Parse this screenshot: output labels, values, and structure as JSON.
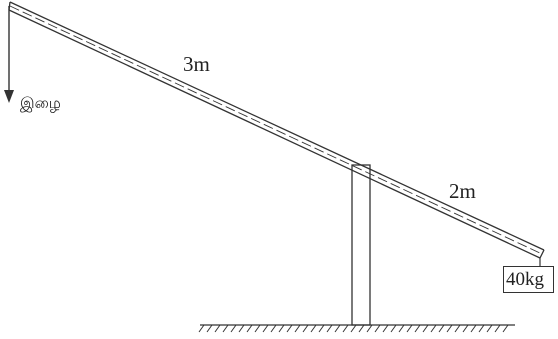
{
  "diagram": {
    "labels": {
      "left_length": "3m",
      "right_length": "2m",
      "effort": "இழை",
      "load": "40kg"
    },
    "colors": {
      "line": "#333333",
      "background": "#ffffff"
    },
    "icons": {
      "effort_arrow": "down-arrow-icon",
      "ground": "hatched-ground-icon"
    }
  }
}
